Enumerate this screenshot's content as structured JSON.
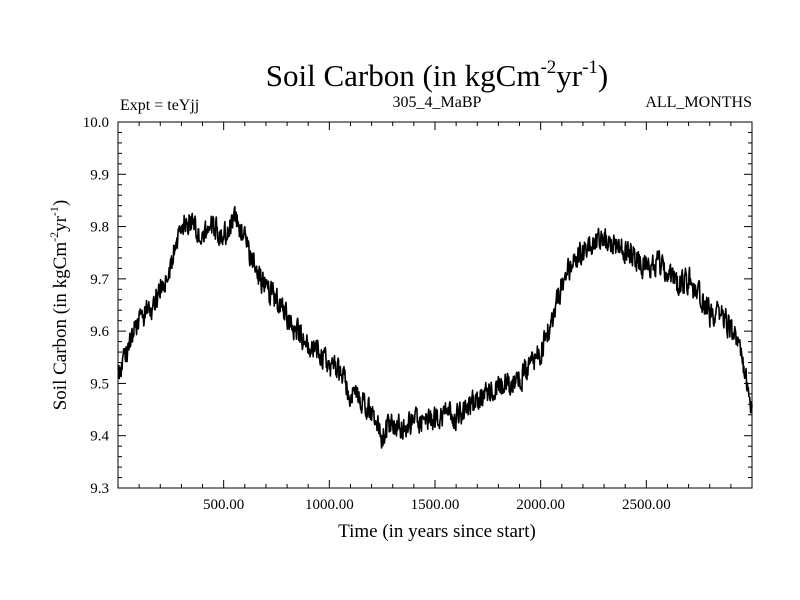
{
  "chart_data": {
    "type": "line",
    "title": "Soil Carbon (in kgCm-2yr-1)",
    "title_parts": {
      "main": "Soil Carbon (in kgCm",
      "exp1": "-2",
      "mid": "yr",
      "exp2": "-1",
      "end": ")"
    },
    "subtitle_left": "Expt = teYjj",
    "subtitle_center": "305_4_MaBP",
    "subtitle_right": "ALL_MONTHS",
    "xlabel": "Time (in years since start)",
    "ylabel": "Soil Carbon (in kgCm-2yr-1)",
    "ylabel_parts": {
      "main": "Soil Carbon (in kgCm",
      "exp1": "-2",
      "mid": "yr",
      "exp2": "-1",
      "end": ")"
    },
    "xlim": [
      0,
      3000
    ],
    "ylim": [
      9.3,
      10.0
    ],
    "xticks": [
      500,
      1000,
      1500,
      2000,
      2500
    ],
    "xtick_labels": [
      "500.00",
      "1000.00",
      "1500.00",
      "2000.00",
      "2500.00"
    ],
    "yticks": [
      9.3,
      9.4,
      9.5,
      9.6,
      9.7,
      9.8,
      9.9,
      10.0
    ],
    "ytick_labels": [
      "9.3",
      "9.4",
      "9.5",
      "9.6",
      "9.7",
      "9.8",
      "9.9",
      "10.0"
    ],
    "series": [
      {
        "name": "Soil Carbon",
        "noise_amplitude": 0.035,
        "x": [
          0,
          50,
          100,
          150,
          200,
          250,
          300,
          350,
          400,
          450,
          500,
          550,
          600,
          650,
          700,
          750,
          800,
          850,
          900,
          950,
          1000,
          1050,
          1100,
          1150,
          1200,
          1250,
          1300,
          1350,
          1400,
          1450,
          1500,
          1550,
          1600,
          1650,
          1700,
          1750,
          1800,
          1850,
          1900,
          1950,
          2000,
          2050,
          2100,
          2150,
          2200,
          2250,
          2300,
          2350,
          2400,
          2450,
          2500,
          2550,
          2600,
          2650,
          2700,
          2750,
          2800,
          2850,
          2900,
          2950,
          3000
        ],
        "values": [
          9.52,
          9.57,
          9.62,
          9.64,
          9.68,
          9.73,
          9.8,
          9.81,
          9.78,
          9.8,
          9.78,
          9.82,
          9.78,
          9.72,
          9.68,
          9.66,
          9.63,
          9.6,
          9.57,
          9.56,
          9.53,
          9.52,
          9.48,
          9.47,
          9.44,
          9.4,
          9.42,
          9.41,
          9.43,
          9.42,
          9.43,
          9.45,
          9.44,
          9.45,
          9.47,
          9.48,
          9.49,
          9.5,
          9.51,
          9.53,
          9.56,
          9.62,
          9.69,
          9.73,
          9.75,
          9.78,
          9.77,
          9.76,
          9.75,
          9.74,
          9.72,
          9.73,
          9.71,
          9.69,
          9.7,
          9.67,
          9.63,
          9.64,
          9.6,
          9.55,
          9.45
        ]
      }
    ]
  }
}
